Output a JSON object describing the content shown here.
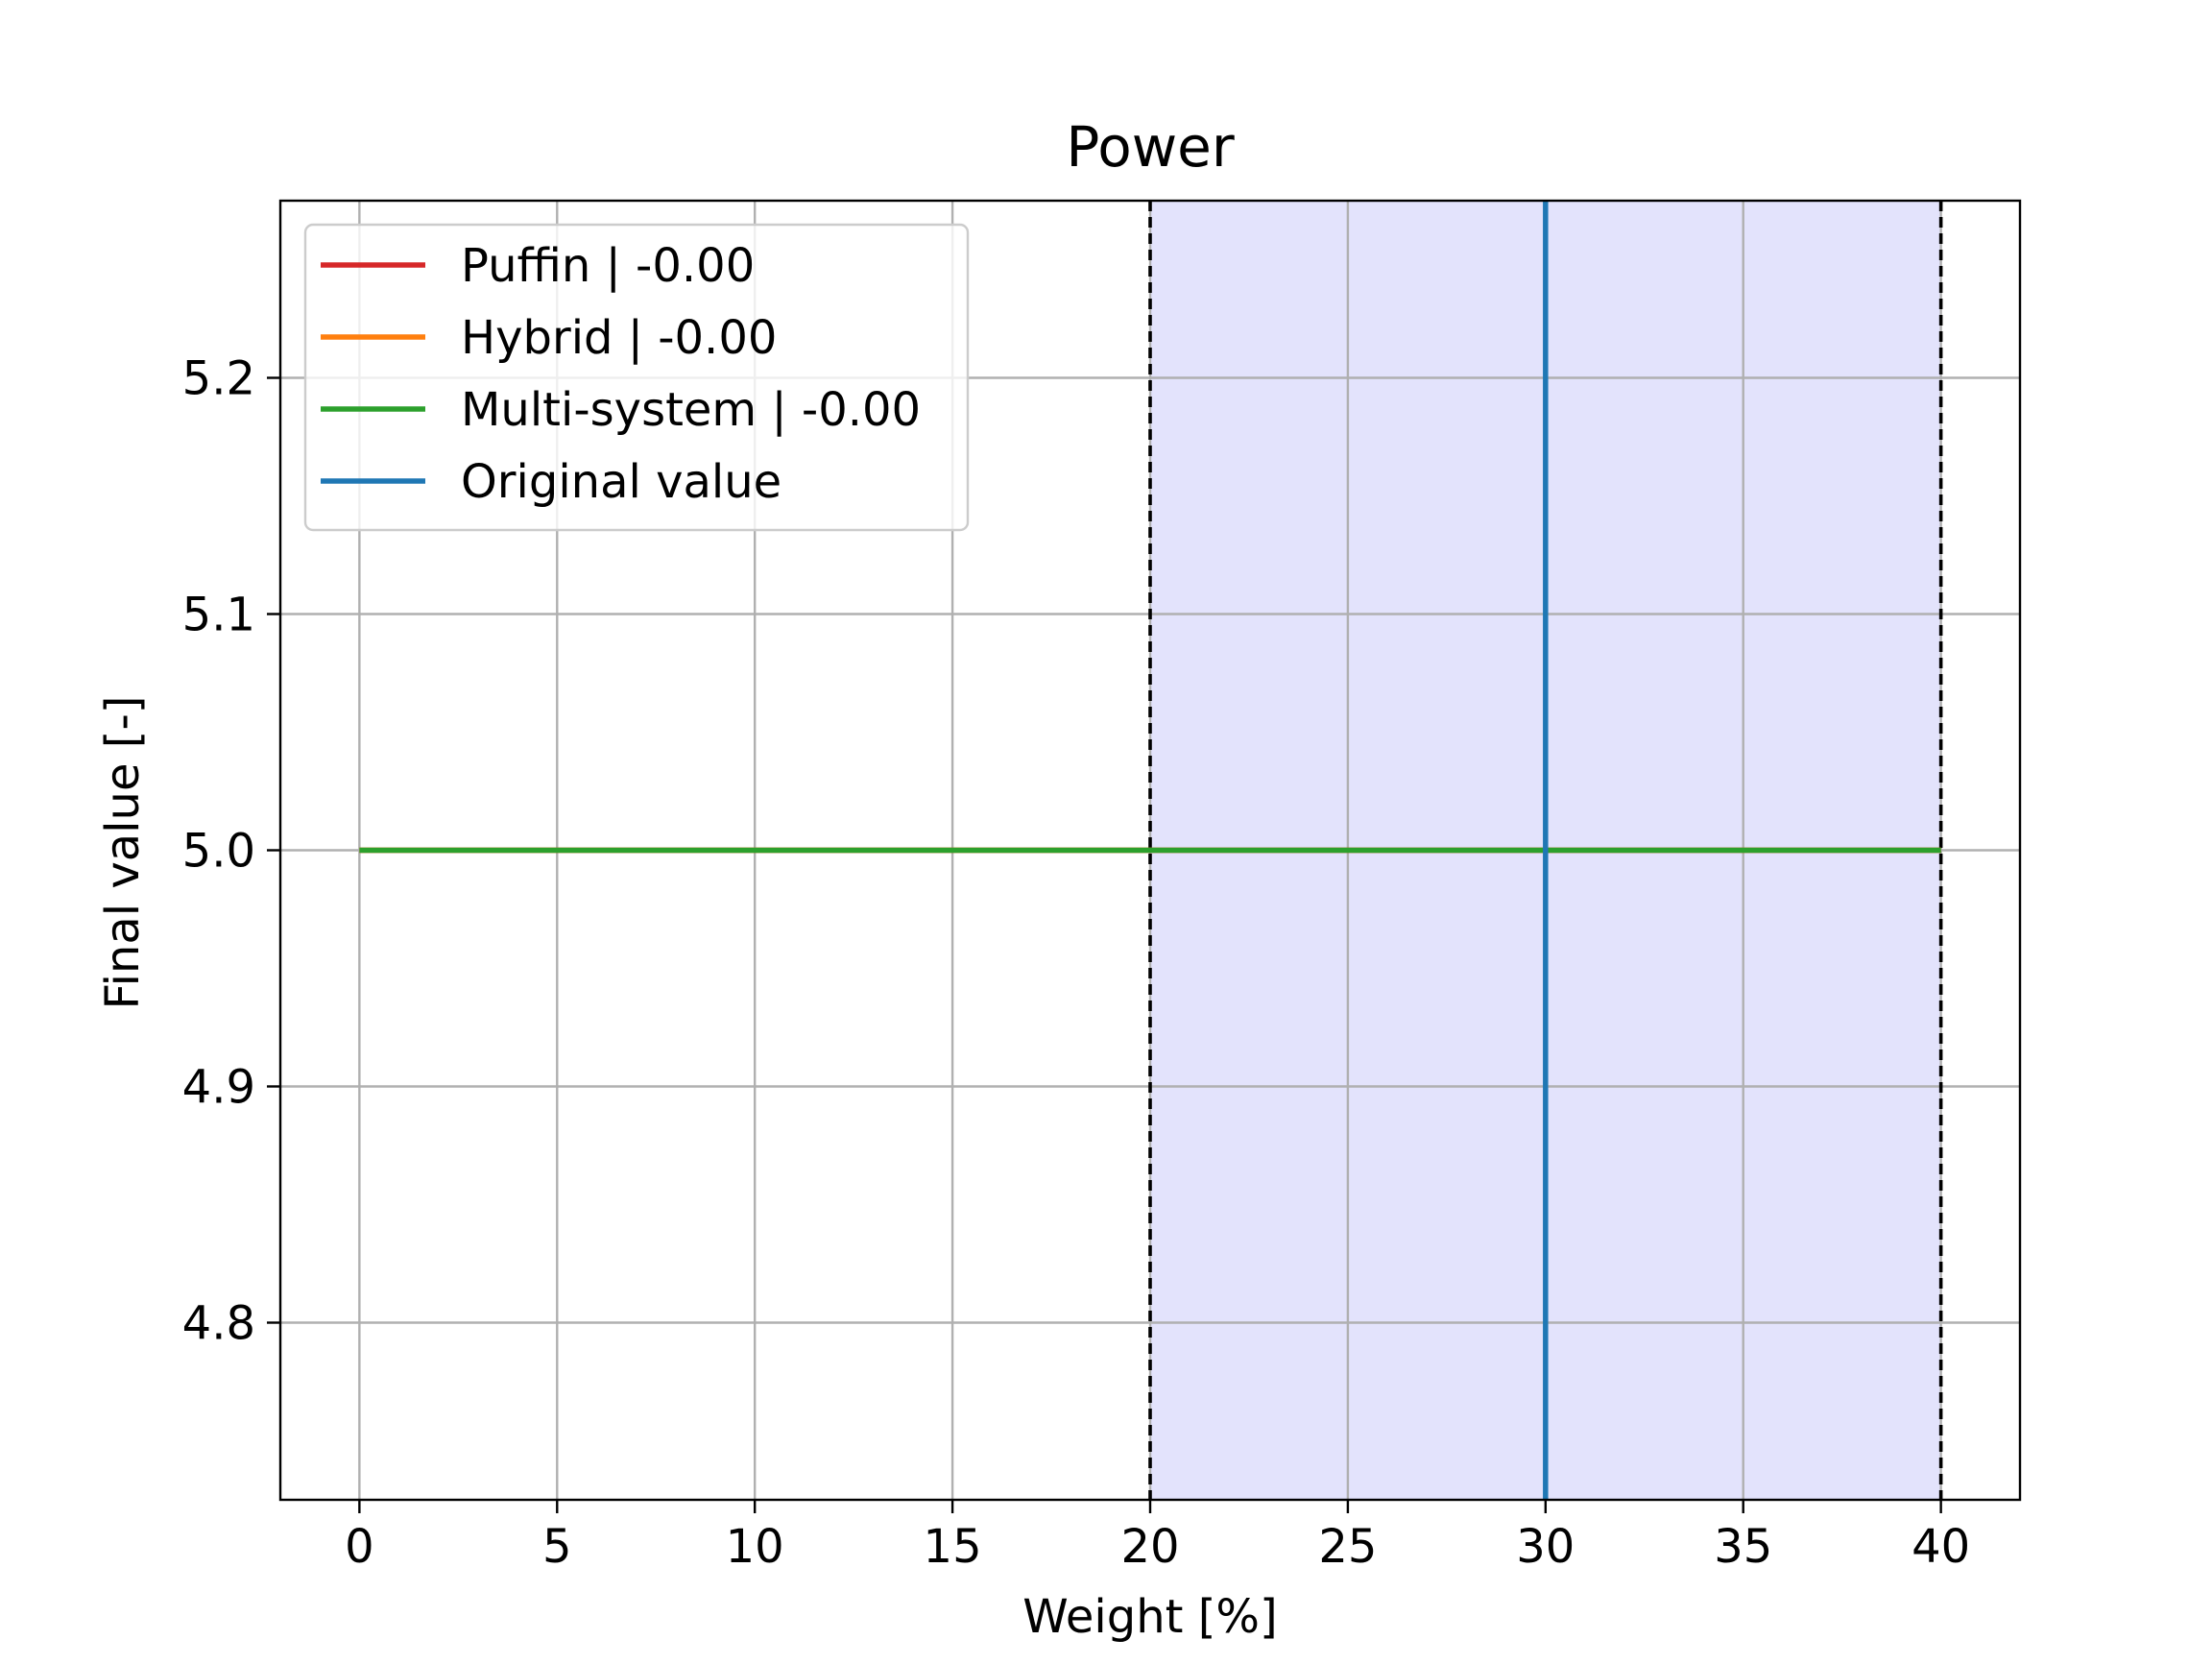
{
  "chart_data": {
    "type": "line",
    "title": "Power",
    "xlabel": "Weight [%]",
    "ylabel": "Final value [-]",
    "xlim": [
      -2,
      42
    ],
    "ylim": [
      4.725,
      5.275
    ],
    "x_ticks": [
      0,
      5,
      10,
      15,
      20,
      25,
      30,
      35,
      40
    ],
    "y_ticks": [
      4.8,
      4.9,
      5.0,
      5.1,
      5.2
    ],
    "y_tick_labels": [
      "4.8",
      "4.9",
      "5.0",
      "5.1",
      "5.2"
    ],
    "grid": true,
    "legend_position": "top-left",
    "shaded_region": {
      "x": [
        20,
        40
      ],
      "color": "#e3e3fc"
    },
    "boundary_lines": [
      20,
      40
    ],
    "series": [
      {
        "name": "Puffin | -0.00",
        "color": "#d62728",
        "x": [
          0,
          40
        ],
        "y": [
          5.0,
          5.0
        ]
      },
      {
        "name": "Hybrid | -0.00",
        "color": "#ff7f0e",
        "x": [
          0,
          40
        ],
        "y": [
          5.0,
          5.0
        ]
      },
      {
        "name": "Multi-system | -0.00",
        "color": "#2ca02c",
        "x": [
          0,
          40
        ],
        "y": [
          5.0,
          5.0
        ]
      }
    ],
    "original_value": {
      "name": "Original value",
      "color": "#1f77b4",
      "x": 30
    }
  }
}
